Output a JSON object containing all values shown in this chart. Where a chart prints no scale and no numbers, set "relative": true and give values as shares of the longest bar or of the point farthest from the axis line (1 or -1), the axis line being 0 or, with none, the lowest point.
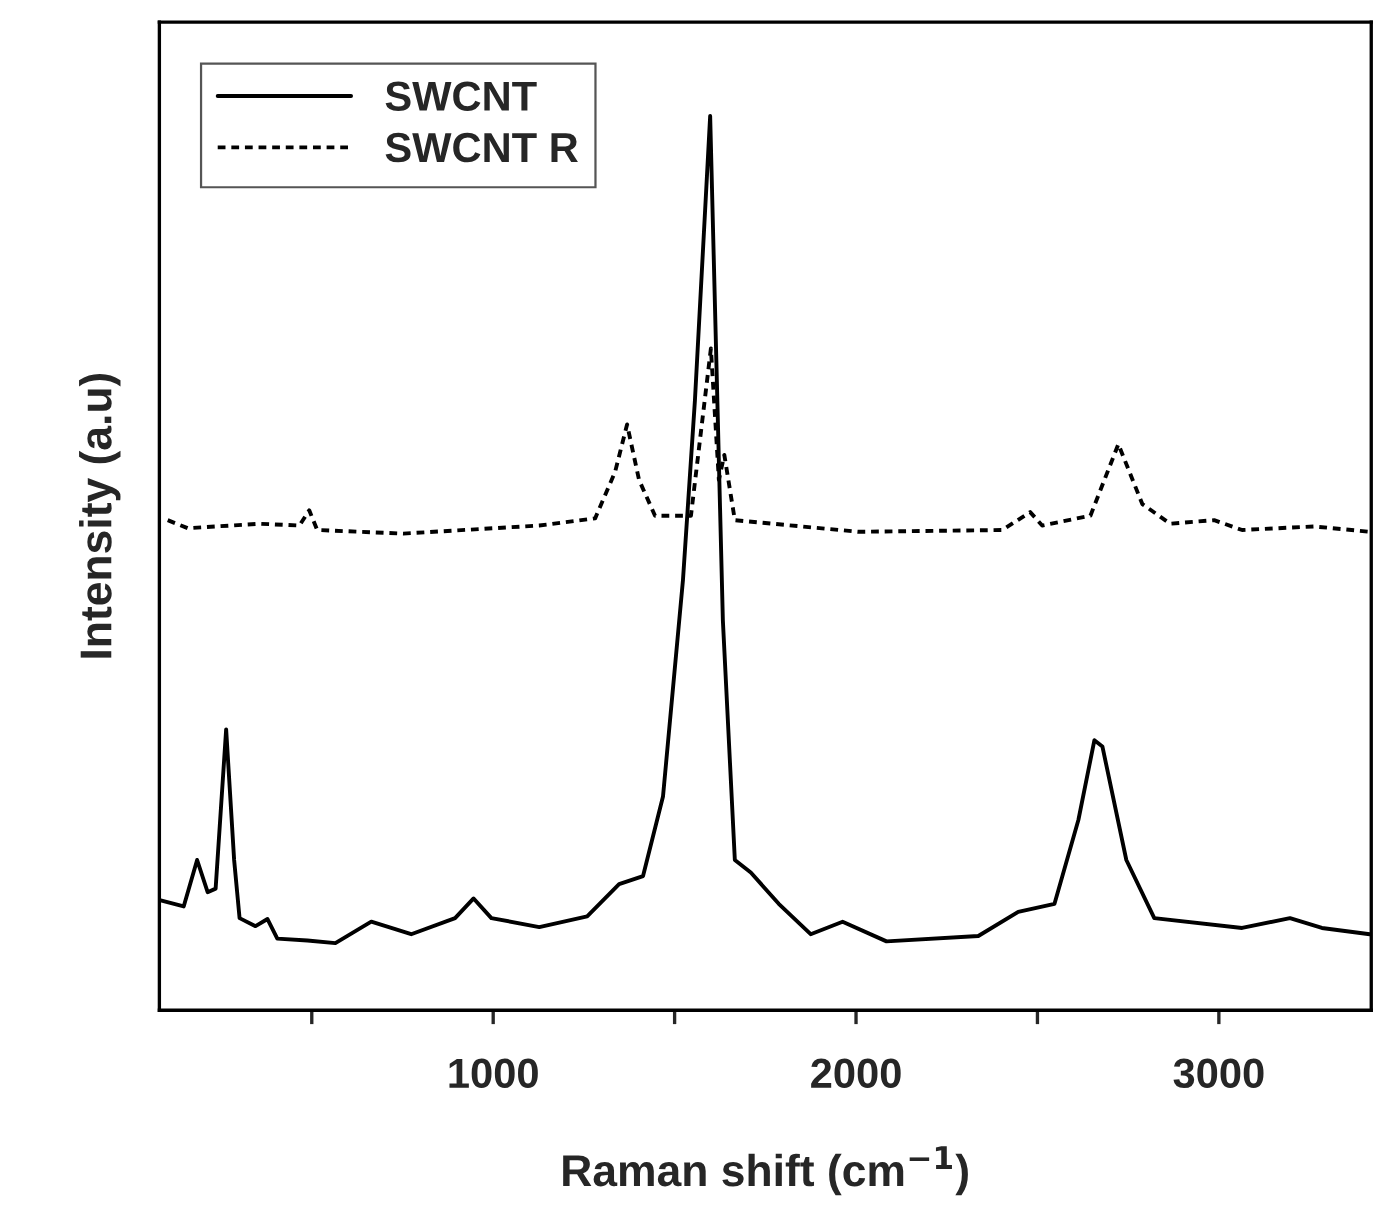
{
  "chart_data": {
    "type": "line",
    "relative": true,
    "xlabel": "Raman shift (cm$^{−1}$)",
    "ylabel": "Intensity (a.u)",
    "xlim": [
      80,
      3420
    ],
    "xticks": [
      {
        "value": 500,
        "label": null
      },
      1000,
      {
        "value": 1500,
        "label": null
      },
      2000,
      {
        "value": 2500,
        "label": null
      },
      3000
    ],
    "tick_labels": "x",
    "grid": false,
    "legend": "top left",
    "series": [
      {
        "name": "SWCNT",
        "color": "#000000",
        "line_style": "solid",
        "x": [
          81,
          147,
          184,
          213,
          235,
          264,
          286,
          301,
          345,
          378,
          405,
          488,
          565,
          664,
          774,
          895,
          946,
          995,
          1127,
          1259,
          1347,
          1413,
          1468,
          1523,
          1556,
          1598,
          1615,
          1633,
          1666,
          1710,
          1787,
          1875,
          1963,
          2084,
          2337,
          2447,
          2547,
          2613,
          2657,
          2679,
          2745,
          2822,
          3064,
          3196,
          3284,
          3416
        ],
        "values": [
          0.123,
          0.116,
          0.168,
          0.132,
          0.136,
          0.314,
          0.168,
          0.103,
          0.094,
          0.102,
          0.08,
          0.078,
          0.075,
          0.099,
          0.085,
          0.103,
          0.125,
          0.103,
          0.093,
          0.105,
          0.141,
          0.15,
          0.239,
          0.481,
          0.682,
          1.0,
          0.727,
          0.436,
          0.168,
          0.154,
          0.119,
          0.085,
          0.099,
          0.077,
          0.083,
          0.11,
          0.119,
          0.213,
          0.302,
          0.295,
          0.168,
          0.103,
          0.092,
          0.103,
          0.092,
          0.085
        ]
      },
      {
        "name": "SWCNT R",
        "color": "#000000",
        "line_style": "dotted",
        "x": [
          103,
          158,
          356,
          466,
          493,
          515,
          752,
          1127,
          1281,
          1336,
          1369,
          1402,
          1446,
          1545,
          1600,
          1622,
          1637,
          1666,
          2007,
          2403,
          2480,
          2513,
          2646,
          2723,
          2789,
          2866,
          2987,
          3064,
          3262,
          3416
        ],
        "values": [
          0.548,
          0.539,
          0.544,
          0.542,
          0.559,
          0.537,
          0.533,
          0.542,
          0.55,
          0.602,
          0.655,
          0.593,
          0.553,
          0.553,
          0.74,
          0.593,
          0.621,
          0.548,
          0.535,
          0.537,
          0.557,
          0.542,
          0.553,
          0.633,
          0.566,
          0.544,
          0.548,
          0.537,
          0.541,
          0.535
        ]
      }
    ]
  }
}
